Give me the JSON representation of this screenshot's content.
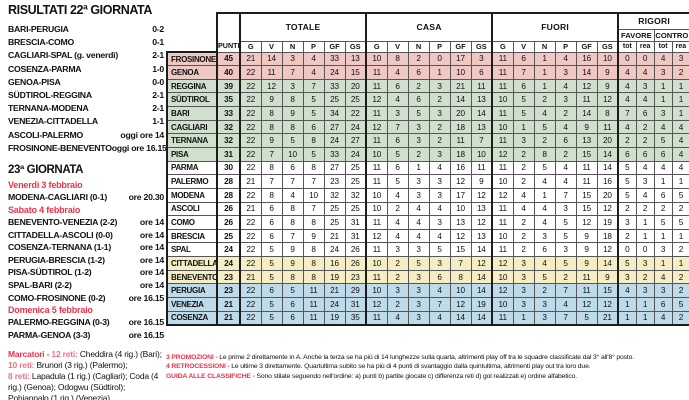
{
  "colors": {
    "accent_red": "#e8344c",
    "count_pink": "#ee7288",
    "zone_promotion": "#efc8c3",
    "zone_playoff": "#cfe1cc",
    "zone_none": "#ffffff",
    "zone_playout": "#f5edc4",
    "zone_relegation": "#bfdbe9",
    "grid": "#565656"
  },
  "results": {
    "title": "RISULTATI 22ª GIORNATA",
    "matches": [
      {
        "match": "BARI-PERUGIA",
        "result": "0-2"
      },
      {
        "match": "BRESCIA-COMO",
        "result": "0-1"
      },
      {
        "match": "CAGLIARI-SPAL (g. venerdì)",
        "result": "2-1"
      },
      {
        "match": "COSENZA-PARMA",
        "result": "1-0"
      },
      {
        "match": "GENOA-PISA",
        "result": "0-0"
      },
      {
        "match": "SÜDTIROL-REGGINA",
        "result": "2-1"
      },
      {
        "match": "TERNANA-MODENA",
        "result": "2-1"
      },
      {
        "match": "VENEZIA-CITTADELLA",
        "result": "1-1"
      },
      {
        "match": "ASCOLI-PALERMO",
        "result": "oggi ore 14"
      },
      {
        "match": "FROSINONE-BENEVENTO",
        "result": "oggi ore 16.15"
      }
    ]
  },
  "giornata23": {
    "title": "23ª GIORNATA",
    "days": [
      {
        "date": "Venerdì 3 febbraio",
        "matches": [
          {
            "match": "MODENA-CAGLIARI (0-1)",
            "time": "ore 20.30"
          }
        ]
      },
      {
        "date": "Sabato 4 febbraio",
        "matches": [
          {
            "match": "BENEVENTO-VENEZIA (2-2)",
            "time": "ore 14"
          },
          {
            "match": "CITTADELLA-ASCOLI (0-0)",
            "time": "ore 14"
          },
          {
            "match": "COSENZA-TERNANA (1-1)",
            "time": "ore 14"
          },
          {
            "match": "PERUGIA-BRESCIA (1-2)",
            "time": "ore 14"
          },
          {
            "match": "PISA-SÜDTIROL (1-2)",
            "time": "ore 14"
          },
          {
            "match": "SPAL-BARI (2-2)",
            "time": "ore 14"
          },
          {
            "match": "COMO-FROSINONE (0-2)",
            "time": "ore 16.15"
          }
        ]
      },
      {
        "date": "Domenica 5 febbraio",
        "matches": [
          {
            "match": "PALERMO-REGGINA (0-3)",
            "time": "ore 16.15"
          },
          {
            "match": "PARMA-GENOA (3-3)",
            "time": "ore 16.15"
          }
        ]
      }
    ]
  },
  "marcatori": {
    "label": "Marcatori - ",
    "groups": [
      {
        "count": "12 reti:",
        "text": " Cheddira (4 rig.) (Bari);"
      },
      {
        "count": "10 reti:",
        "text": " Brunori (3 rig.) (Palermo);"
      },
      {
        "count": "8 reti:",
        "text": " Lapadula (1 rig.) (Cagliari); Coda (4 rig.) (Genoa); Odogwu (Südtirol); Pohjanpalo (1 rig.) (Venezia)."
      }
    ]
  },
  "standings": {
    "group_headers": {
      "totale": "TOTALE",
      "casa": "CASA",
      "fuori": "FUORI",
      "rigori": "RIGORI",
      "favore": "FAVORE",
      "contro": "CONTRO"
    },
    "col_headers": {
      "punti": "PUNTI",
      "stats": [
        "G",
        "V",
        "N",
        "P",
        "GF",
        "GS"
      ],
      "rigori_cols": [
        "tot",
        "rea",
        "tot",
        "rea"
      ]
    },
    "rows": [
      {
        "team": "FROSINONE",
        "zone": "promotion",
        "punti": 45,
        "totale": [
          21,
          14,
          3,
          4,
          33,
          13
        ],
        "casa": [
          10,
          8,
          2,
          0,
          17,
          3
        ],
        "fuori": [
          11,
          6,
          1,
          4,
          16,
          10
        ],
        "rigori": [
          0,
          0,
          4,
          3
        ]
      },
      {
        "team": "GENOA",
        "zone": "promotion",
        "punti": 40,
        "totale": [
          22,
          11,
          7,
          4,
          24,
          15
        ],
        "casa": [
          11,
          4,
          6,
          1,
          10,
          6
        ],
        "fuori": [
          11,
          7,
          1,
          3,
          14,
          9
        ],
        "rigori": [
          4,
          4,
          3,
          2
        ]
      },
      {
        "team": "REGGINA",
        "zone": "playoff",
        "punti": 39,
        "totale": [
          22,
          12,
          3,
          7,
          33,
          20
        ],
        "casa": [
          11,
          6,
          2,
          3,
          21,
          11
        ],
        "fuori": [
          11,
          6,
          1,
          4,
          12,
          9
        ],
        "rigori": [
          4,
          3,
          1,
          1
        ]
      },
      {
        "team": "SÜDTIROL",
        "zone": "playoff",
        "punti": 35,
        "totale": [
          22,
          9,
          8,
          5,
          25,
          25
        ],
        "casa": [
          12,
          4,
          6,
          2,
          14,
          13
        ],
        "fuori": [
          10,
          5,
          2,
          3,
          11,
          12
        ],
        "rigori": [
          4,
          4,
          1,
          1
        ]
      },
      {
        "team": "BARI",
        "zone": "playoff",
        "punti": 33,
        "totale": [
          22,
          8,
          9,
          5,
          34,
          22
        ],
        "casa": [
          11,
          3,
          5,
          3,
          20,
          14
        ],
        "fuori": [
          11,
          5,
          4,
          2,
          14,
          8
        ],
        "rigori": [
          7,
          6,
          3,
          1
        ]
      },
      {
        "team": "CAGLIARI",
        "zone": "playoff",
        "punti": 32,
        "totale": [
          22,
          8,
          8,
          6,
          27,
          24
        ],
        "casa": [
          12,
          7,
          3,
          2,
          18,
          13
        ],
        "fuori": [
          10,
          1,
          5,
          4,
          9,
          11
        ],
        "rigori": [
          4,
          2,
          4,
          4
        ]
      },
      {
        "team": "TERNANA",
        "zone": "playoff",
        "punti": 32,
        "totale": [
          22,
          9,
          5,
          8,
          24,
          27
        ],
        "casa": [
          11,
          6,
          3,
          2,
          11,
          7
        ],
        "fuori": [
          11,
          3,
          2,
          6,
          13,
          20
        ],
        "rigori": [
          2,
          2,
          5,
          4
        ]
      },
      {
        "team": "PISA",
        "zone": "playoff",
        "punti": 31,
        "totale": [
          22,
          7,
          10,
          5,
          33,
          24
        ],
        "casa": [
          10,
          5,
          2,
          3,
          18,
          10
        ],
        "fuori": [
          12,
          2,
          8,
          2,
          15,
          14
        ],
        "rigori": [
          6,
          6,
          6,
          4
        ]
      },
      {
        "team": "PARMA",
        "zone": "none",
        "punti": 30,
        "totale": [
          22,
          8,
          6,
          8,
          27,
          25
        ],
        "casa": [
          11,
          6,
          1,
          4,
          16,
          11
        ],
        "fuori": [
          11,
          2,
          5,
          4,
          11,
          14
        ],
        "rigori": [
          5,
          4,
          4,
          4
        ]
      },
      {
        "team": "PALERMO",
        "zone": "none",
        "punti": 28,
        "totale": [
          21,
          7,
          7,
          7,
          23,
          25
        ],
        "casa": [
          11,
          5,
          3,
          3,
          12,
          9
        ],
        "fuori": [
          10,
          2,
          4,
          4,
          11,
          16
        ],
        "rigori": [
          5,
          3,
          1,
          1
        ]
      },
      {
        "team": "MODENA",
        "zone": "none",
        "punti": 28,
        "totale": [
          22,
          8,
          4,
          10,
          32,
          32
        ],
        "casa": [
          10,
          4,
          3,
          3,
          17,
          12
        ],
        "fuori": [
          12,
          4,
          1,
          7,
          15,
          20
        ],
        "rigori": [
          5,
          4,
          6,
          5
        ]
      },
      {
        "team": "ASCOLI",
        "zone": "none",
        "punti": 26,
        "totale": [
          21,
          6,
          8,
          7,
          25,
          25
        ],
        "casa": [
          10,
          2,
          4,
          4,
          10,
          13
        ],
        "fuori": [
          11,
          4,
          4,
          3,
          15,
          12
        ],
        "rigori": [
          2,
          2,
          2,
          2
        ]
      },
      {
        "team": "COMO",
        "zone": "none",
        "punti": 26,
        "totale": [
          22,
          6,
          8,
          8,
          25,
          31
        ],
        "casa": [
          11,
          4,
          4,
          3,
          13,
          12
        ],
        "fuori": [
          11,
          2,
          4,
          5,
          12,
          19
        ],
        "rigori": [
          3,
          1,
          5,
          5
        ]
      },
      {
        "team": "BRESCIA",
        "zone": "none",
        "punti": 25,
        "totale": [
          22,
          6,
          7,
          9,
          21,
          31
        ],
        "casa": [
          12,
          4,
          4,
          4,
          12,
          13
        ],
        "fuori": [
          10,
          2,
          3,
          5,
          9,
          18
        ],
        "rigori": [
          2,
          1,
          1,
          1
        ]
      },
      {
        "team": "SPAL",
        "zone": "none",
        "punti": 24,
        "totale": [
          22,
          5,
          9,
          8,
          24,
          26
        ],
        "casa": [
          11,
          3,
          3,
          5,
          15,
          14
        ],
        "fuori": [
          11,
          2,
          6,
          3,
          9,
          12
        ],
        "rigori": [
          0,
          0,
          3,
          2
        ]
      },
      {
        "team": "CITTADELLA",
        "zone": "playout",
        "punti": 24,
        "totale": [
          22,
          5,
          9,
          8,
          16,
          26
        ],
        "casa": [
          10,
          2,
          5,
          3,
          7,
          12
        ],
        "fuori": [
          12,
          3,
          4,
          5,
          9,
          14
        ],
        "rigori": [
          5,
          3,
          1,
          1
        ]
      },
      {
        "team": "BENEVENTO",
        "zone": "playout",
        "punti": 23,
        "totale": [
          21,
          5,
          8,
          8,
          19,
          23
        ],
        "casa": [
          11,
          2,
          3,
          6,
          8,
          14
        ],
        "fuori": [
          10,
          3,
          5,
          2,
          11,
          9
        ],
        "rigori": [
          3,
          2,
          4,
          2
        ]
      },
      {
        "team": "PERUGIA",
        "zone": "relegation",
        "punti": 23,
        "totale": [
          22,
          6,
          5,
          11,
          21,
          29
        ],
        "casa": [
          10,
          3,
          3,
          4,
          10,
          14
        ],
        "fuori": [
          12,
          3,
          2,
          7,
          11,
          15
        ],
        "rigori": [
          4,
          3,
          3,
          2
        ]
      },
      {
        "team": "VENEZIA",
        "zone": "relegation",
        "punti": 21,
        "totale": [
          22,
          5,
          6,
          11,
          24,
          31
        ],
        "casa": [
          12,
          2,
          3,
          7,
          12,
          19
        ],
        "fuori": [
          10,
          3,
          3,
          4,
          12,
          12
        ],
        "rigori": [
          1,
          1,
          6,
          5
        ]
      },
      {
        "team": "COSENZA",
        "zone": "relegation",
        "punti": 21,
        "totale": [
          22,
          5,
          6,
          11,
          19,
          35
        ],
        "casa": [
          11,
          4,
          3,
          4,
          14,
          14
        ],
        "fuori": [
          11,
          1,
          3,
          7,
          5,
          21
        ],
        "rigori": [
          1,
          1,
          4,
          2
        ]
      }
    ]
  },
  "footer_notes": [
    {
      "label": "3 PROMOZIONI -",
      "text": " Le prime 2 direttamente in A. Anche la terza se ha più di 14 lunghezze sulla quarta, altrimenti play off tra le squadre classificate dal 3° all'8° posto."
    },
    {
      "label": "4 RETROCESSIONI -",
      "text": " Le ultime 3 direttamente. Quartultima subito se ha più di 4 punti di svantaggio dalla quintultima, altrimenti play out tra loro due."
    },
    {
      "label": "GUIDA ALLE CLASSIFICHE -",
      "text": " Sono stilate seguendo nell'ordine: a) punti b) partite giocate c) differenza reti d) gol realizzati e) ordine alfabetico."
    }
  ]
}
